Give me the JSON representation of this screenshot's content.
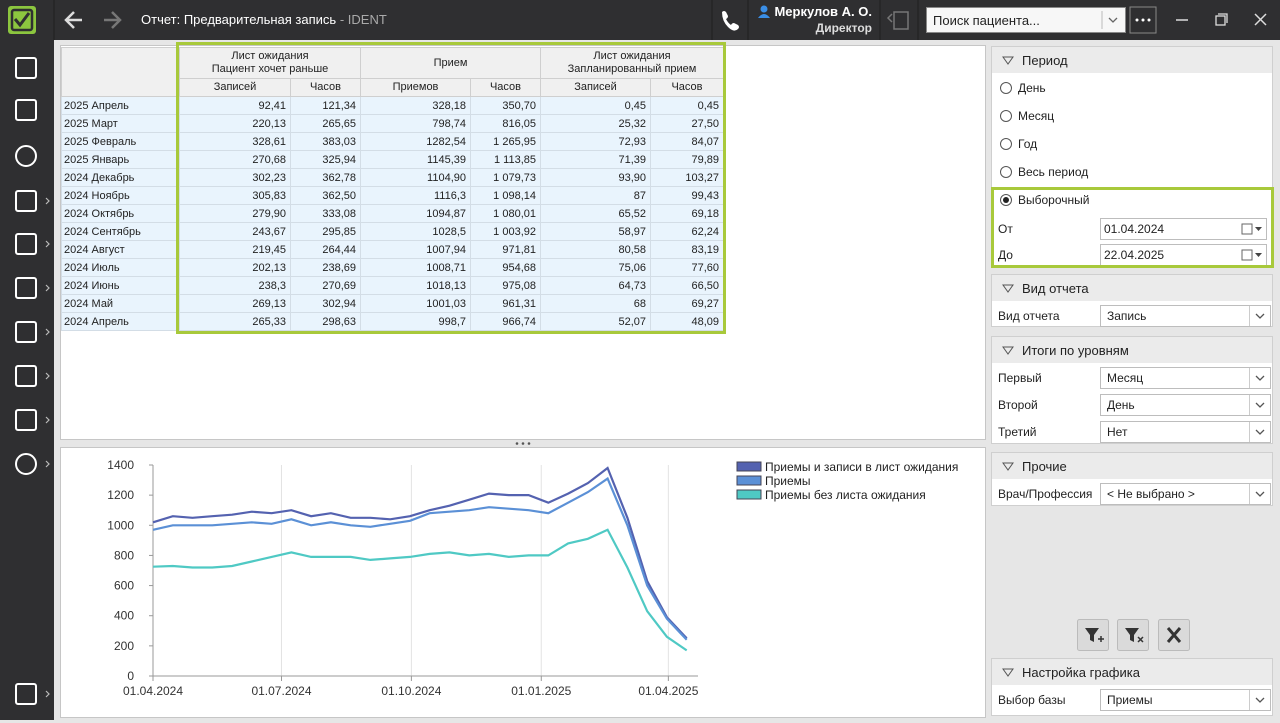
{
  "header": {
    "title": "Отчет: Предварительная запись",
    "title_suffix": "- IDENT",
    "user": "Меркулов А. О.",
    "role": "Директор",
    "search_placeholder": "Поиск пациента..."
  },
  "table": {
    "groups": [
      "Лист ожидания\nПациент хочет раньше",
      "Прием",
      "Лист ожидания\nЗапланированный прием"
    ],
    "columns": [
      "Записей",
      "Часов",
      "Приемов",
      "Часов",
      "Записей",
      "Часов"
    ],
    "rows": [
      {
        "label": "2025 Апрель",
        "values": [
          "92,41",
          "121,34",
          "328,18",
          "350,70",
          "0,45",
          "0,45"
        ]
      },
      {
        "label": "2025 Март",
        "values": [
          "220,13",
          "265,65",
          "798,74",
          "816,05",
          "25,32",
          "27,50"
        ]
      },
      {
        "label": "2025 Февраль",
        "values": [
          "328,61",
          "383,03",
          "1282,54",
          "1 265,95",
          "72,93",
          "84,07"
        ]
      },
      {
        "label": "2025 Январь",
        "values": [
          "270,68",
          "325,94",
          "1145,39",
          "1 113,85",
          "71,39",
          "79,89"
        ]
      },
      {
        "label": "2024 Декабрь",
        "values": [
          "302,23",
          "362,78",
          "1104,90",
          "1 079,73",
          "93,90",
          "103,27"
        ]
      },
      {
        "label": "2024 Ноябрь",
        "values": [
          "305,83",
          "362,50",
          "1116,3",
          "1 098,14",
          "87",
          "99,43"
        ]
      },
      {
        "label": "2024 Октябрь",
        "values": [
          "279,90",
          "333,08",
          "1094,87",
          "1 080,01",
          "65,52",
          "69,18"
        ]
      },
      {
        "label": "2024 Сентябрь",
        "values": [
          "243,67",
          "295,85",
          "1028,5",
          "1 003,92",
          "58,97",
          "62,24"
        ]
      },
      {
        "label": "2024 Август",
        "values": [
          "219,45",
          "264,44",
          "1007,94",
          "971,81",
          "80,58",
          "83,19"
        ]
      },
      {
        "label": "2024 Июль",
        "values": [
          "202,13",
          "238,69",
          "1008,71",
          "954,68",
          "75,06",
          "77,60"
        ]
      },
      {
        "label": "2024 Июнь",
        "values": [
          "238,3",
          "270,69",
          "1018,13",
          "975,08",
          "64,73",
          "66,50"
        ]
      },
      {
        "label": "2024 Май",
        "values": [
          "269,13",
          "302,94",
          "1001,03",
          "961,31",
          "68",
          "69,27"
        ]
      },
      {
        "label": "2024 Апрель",
        "values": [
          "265,33",
          "298,63",
          "998,7",
          "966,74",
          "52,07",
          "48,09"
        ]
      }
    ]
  },
  "chart_data": {
    "type": "line",
    "x": [
      "01.04.2024",
      "15.04.2024",
      "29.04.2024",
      "13.05.2024",
      "27.05.2024",
      "10.06.2024",
      "24.06.2024",
      "08.07.2024",
      "22.07.2024",
      "05.08.2024",
      "19.08.2024",
      "02.09.2024",
      "16.09.2024",
      "30.09.2024",
      "14.10.2024",
      "28.10.2024",
      "11.11.2024",
      "25.11.2024",
      "09.12.2024",
      "23.12.2024",
      "06.01.2025",
      "20.01.2025",
      "03.02.2025",
      "17.02.2025",
      "03.03.2025",
      "17.03.2025",
      "31.03.2025",
      "14.04.2025"
    ],
    "xlim": [
      "01.04.2024",
      "22.04.2025"
    ],
    "xticks": [
      "01.04.2024",
      "01.07.2024",
      "01.10.2024",
      "01.01.2025",
      "01.04.2025"
    ],
    "ylim": [
      0,
      1400
    ],
    "yticks": [
      0,
      200,
      400,
      600,
      800,
      1000,
      1200,
      1400
    ],
    "grid": true,
    "legend": "top-right",
    "series": [
      {
        "name": "Приемы и записи в лист ожидания",
        "color": "#5462b0",
        "values": [
          1020,
          1060,
          1050,
          1060,
          1070,
          1090,
          1080,
          1100,
          1060,
          1080,
          1050,
          1050,
          1040,
          1060,
          1100,
          1130,
          1170,
          1210,
          1200,
          1200,
          1150,
          1210,
          1280,
          1380,
          1050,
          630,
          390,
          250
        ]
      },
      {
        "name": "Приемы",
        "color": "#5b90d6",
        "values": [
          970,
          1000,
          1000,
          1000,
          1010,
          1020,
          1010,
          1040,
          1000,
          1020,
          1000,
          990,
          1010,
          1030,
          1080,
          1090,
          1100,
          1120,
          1110,
          1100,
          1080,
          1150,
          1220,
          1310,
          1000,
          600,
          380,
          240
        ]
      },
      {
        "name": "Приемы без листа ожидания",
        "color": "#4fc9c4",
        "values": [
          725,
          730,
          720,
          720,
          730,
          760,
          790,
          820,
          790,
          790,
          790,
          770,
          780,
          790,
          810,
          820,
          800,
          810,
          790,
          800,
          800,
          880,
          910,
          970,
          720,
          430,
          260,
          170
        ]
      }
    ]
  },
  "period": {
    "title": "Период",
    "options": [
      "День",
      "Месяц",
      "Год",
      "Весь период",
      "Выборочный"
    ],
    "selected": 4,
    "from_label": "От",
    "from": "01.04.2024",
    "to_label": "До",
    "to": "22.04.2025"
  },
  "report_type": {
    "title": "Вид отчета",
    "fields": [
      {
        "label": "Вид отчета",
        "value": "Запись"
      }
    ]
  },
  "levels": {
    "title": "Итоги по уровням",
    "fields": [
      {
        "label": "Первый",
        "value": "Месяц"
      },
      {
        "label": "Второй",
        "value": "День"
      },
      {
        "label": "Третий",
        "value": "Нет"
      }
    ]
  },
  "other": {
    "title": "Прочие",
    "fields": [
      {
        "label": "Врач/Профессия",
        "value": "< Не выбрано >"
      }
    ]
  },
  "chart_settings": {
    "title": "Настройка графика",
    "fields": [
      {
        "label": "Выбор базы",
        "value": "Приемы"
      }
    ]
  }
}
